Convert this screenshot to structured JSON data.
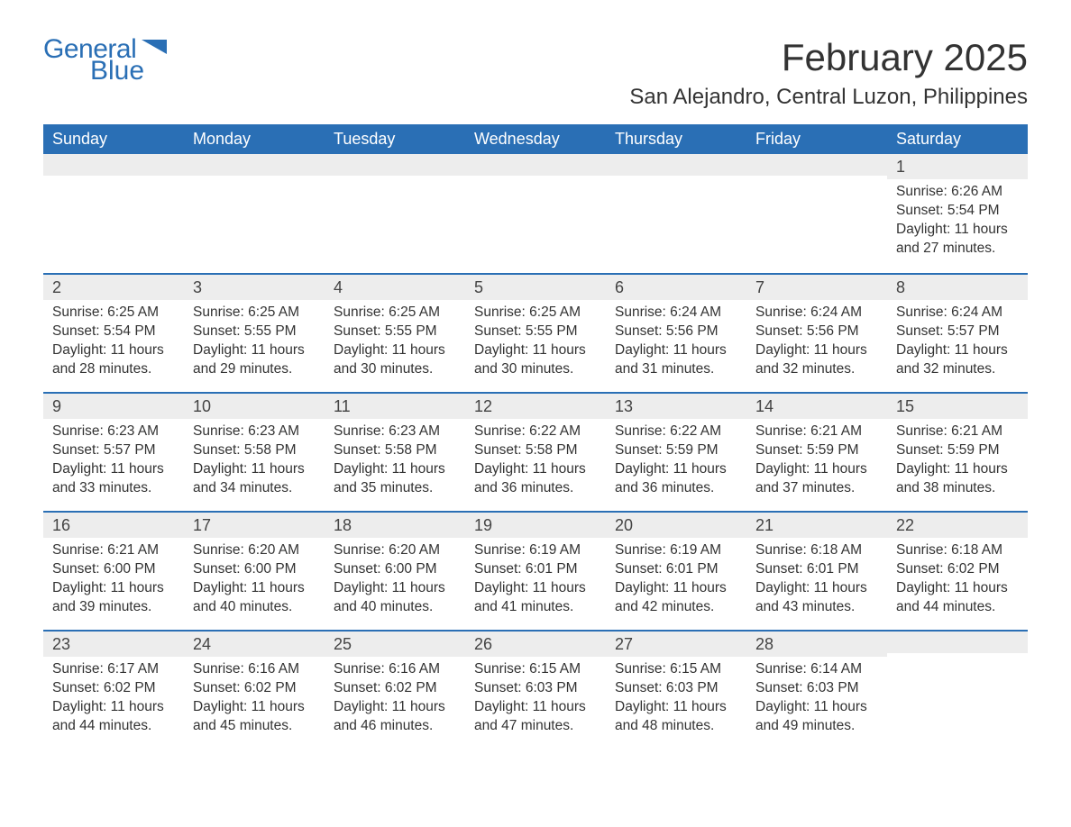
{
  "logo": {
    "text_general": "General",
    "text_blue": "Blue",
    "brand_color": "#2a6fb5"
  },
  "header": {
    "month_title": "February 2025",
    "location": "San Alejandro, Central Luzon, Philippines"
  },
  "colors": {
    "header_bg": "#2a6fb5",
    "header_text": "#ffffff",
    "daynum_bg": "#ededed",
    "week_border": "#2a6fb5",
    "body_text": "#333333",
    "background": "#ffffff"
  },
  "typography": {
    "month_title_fontsize": 42,
    "location_fontsize": 24,
    "dow_fontsize": 18,
    "daynum_fontsize": 18,
    "body_fontsize": 15.5,
    "font_family": "Arial"
  },
  "calendar": {
    "days_of_week": [
      "Sunday",
      "Monday",
      "Tuesday",
      "Wednesday",
      "Thursday",
      "Friday",
      "Saturday"
    ],
    "weeks": [
      [
        {
          "num": "",
          "sunrise": "",
          "sunset": "",
          "daylight": ""
        },
        {
          "num": "",
          "sunrise": "",
          "sunset": "",
          "daylight": ""
        },
        {
          "num": "",
          "sunrise": "",
          "sunset": "",
          "daylight": ""
        },
        {
          "num": "",
          "sunrise": "",
          "sunset": "",
          "daylight": ""
        },
        {
          "num": "",
          "sunrise": "",
          "sunset": "",
          "daylight": ""
        },
        {
          "num": "",
          "sunrise": "",
          "sunset": "",
          "daylight": ""
        },
        {
          "num": "1",
          "sunrise": "Sunrise: 6:26 AM",
          "sunset": "Sunset: 5:54 PM",
          "daylight": "Daylight: 11 hours and 27 minutes."
        }
      ],
      [
        {
          "num": "2",
          "sunrise": "Sunrise: 6:25 AM",
          "sunset": "Sunset: 5:54 PM",
          "daylight": "Daylight: 11 hours and 28 minutes."
        },
        {
          "num": "3",
          "sunrise": "Sunrise: 6:25 AM",
          "sunset": "Sunset: 5:55 PM",
          "daylight": "Daylight: 11 hours and 29 minutes."
        },
        {
          "num": "4",
          "sunrise": "Sunrise: 6:25 AM",
          "sunset": "Sunset: 5:55 PM",
          "daylight": "Daylight: 11 hours and 30 minutes."
        },
        {
          "num": "5",
          "sunrise": "Sunrise: 6:25 AM",
          "sunset": "Sunset: 5:55 PM",
          "daylight": "Daylight: 11 hours and 30 minutes."
        },
        {
          "num": "6",
          "sunrise": "Sunrise: 6:24 AM",
          "sunset": "Sunset: 5:56 PM",
          "daylight": "Daylight: 11 hours and 31 minutes."
        },
        {
          "num": "7",
          "sunrise": "Sunrise: 6:24 AM",
          "sunset": "Sunset: 5:56 PM",
          "daylight": "Daylight: 11 hours and 32 minutes."
        },
        {
          "num": "8",
          "sunrise": "Sunrise: 6:24 AM",
          "sunset": "Sunset: 5:57 PM",
          "daylight": "Daylight: 11 hours and 32 minutes."
        }
      ],
      [
        {
          "num": "9",
          "sunrise": "Sunrise: 6:23 AM",
          "sunset": "Sunset: 5:57 PM",
          "daylight": "Daylight: 11 hours and 33 minutes."
        },
        {
          "num": "10",
          "sunrise": "Sunrise: 6:23 AM",
          "sunset": "Sunset: 5:58 PM",
          "daylight": "Daylight: 11 hours and 34 minutes."
        },
        {
          "num": "11",
          "sunrise": "Sunrise: 6:23 AM",
          "sunset": "Sunset: 5:58 PM",
          "daylight": "Daylight: 11 hours and 35 minutes."
        },
        {
          "num": "12",
          "sunrise": "Sunrise: 6:22 AM",
          "sunset": "Sunset: 5:58 PM",
          "daylight": "Daylight: 11 hours and 36 minutes."
        },
        {
          "num": "13",
          "sunrise": "Sunrise: 6:22 AM",
          "sunset": "Sunset: 5:59 PM",
          "daylight": "Daylight: 11 hours and 36 minutes."
        },
        {
          "num": "14",
          "sunrise": "Sunrise: 6:21 AM",
          "sunset": "Sunset: 5:59 PM",
          "daylight": "Daylight: 11 hours and 37 minutes."
        },
        {
          "num": "15",
          "sunrise": "Sunrise: 6:21 AM",
          "sunset": "Sunset: 5:59 PM",
          "daylight": "Daylight: 11 hours and 38 minutes."
        }
      ],
      [
        {
          "num": "16",
          "sunrise": "Sunrise: 6:21 AM",
          "sunset": "Sunset: 6:00 PM",
          "daylight": "Daylight: 11 hours and 39 minutes."
        },
        {
          "num": "17",
          "sunrise": "Sunrise: 6:20 AM",
          "sunset": "Sunset: 6:00 PM",
          "daylight": "Daylight: 11 hours and 40 minutes."
        },
        {
          "num": "18",
          "sunrise": "Sunrise: 6:20 AM",
          "sunset": "Sunset: 6:00 PM",
          "daylight": "Daylight: 11 hours and 40 minutes."
        },
        {
          "num": "19",
          "sunrise": "Sunrise: 6:19 AM",
          "sunset": "Sunset: 6:01 PM",
          "daylight": "Daylight: 11 hours and 41 minutes."
        },
        {
          "num": "20",
          "sunrise": "Sunrise: 6:19 AM",
          "sunset": "Sunset: 6:01 PM",
          "daylight": "Daylight: 11 hours and 42 minutes."
        },
        {
          "num": "21",
          "sunrise": "Sunrise: 6:18 AM",
          "sunset": "Sunset: 6:01 PM",
          "daylight": "Daylight: 11 hours and 43 minutes."
        },
        {
          "num": "22",
          "sunrise": "Sunrise: 6:18 AM",
          "sunset": "Sunset: 6:02 PM",
          "daylight": "Daylight: 11 hours and 44 minutes."
        }
      ],
      [
        {
          "num": "23",
          "sunrise": "Sunrise: 6:17 AM",
          "sunset": "Sunset: 6:02 PM",
          "daylight": "Daylight: 11 hours and 44 minutes."
        },
        {
          "num": "24",
          "sunrise": "Sunrise: 6:16 AM",
          "sunset": "Sunset: 6:02 PM",
          "daylight": "Daylight: 11 hours and 45 minutes."
        },
        {
          "num": "25",
          "sunrise": "Sunrise: 6:16 AM",
          "sunset": "Sunset: 6:02 PM",
          "daylight": "Daylight: 11 hours and 46 minutes."
        },
        {
          "num": "26",
          "sunrise": "Sunrise: 6:15 AM",
          "sunset": "Sunset: 6:03 PM",
          "daylight": "Daylight: 11 hours and 47 minutes."
        },
        {
          "num": "27",
          "sunrise": "Sunrise: 6:15 AM",
          "sunset": "Sunset: 6:03 PM",
          "daylight": "Daylight: 11 hours and 48 minutes."
        },
        {
          "num": "28",
          "sunrise": "Sunrise: 6:14 AM",
          "sunset": "Sunset: 6:03 PM",
          "daylight": "Daylight: 11 hours and 49 minutes."
        },
        {
          "num": "",
          "sunrise": "",
          "sunset": "",
          "daylight": ""
        }
      ]
    ]
  }
}
